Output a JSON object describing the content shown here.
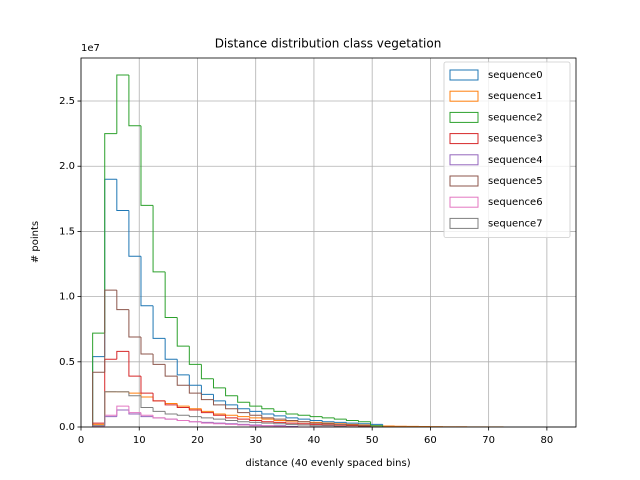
{
  "chart_data": {
    "type": "histogram",
    "title": "Distance distribution class vegetation",
    "xlabel": "distance (40 evenly spaced bins)",
    "ylabel": "# points",
    "y_offset_label": "1e7",
    "histtype": "step",
    "grid": true,
    "legend": "upper right",
    "xlim": [
      0,
      85
    ],
    "ylim": [
      0,
      28300000
    ],
    "xticks": [
      0,
      10,
      20,
      30,
      40,
      50,
      60,
      70,
      80
    ],
    "yticks": [
      {
        "value": 0,
        "label": "0.0"
      },
      {
        "value": 5000000,
        "label": "0.5"
      },
      {
        "value": 10000000,
        "label": "1.0"
      },
      {
        "value": 15000000,
        "label": "1.5"
      },
      {
        "value": 20000000,
        "label": "2.0"
      },
      {
        "value": 25000000,
        "label": "2.5"
      }
    ],
    "bins": [
      2.0,
      4.075,
      6.15,
      8.225,
      10.3,
      12.375,
      14.45,
      16.525,
      18.6,
      20.675,
      22.75,
      24.825,
      26.9,
      28.975,
      31.05,
      33.125,
      35.2,
      37.275,
      39.35,
      41.425,
      43.5,
      45.575,
      47.65,
      49.725,
      51.8,
      53.875,
      55.95,
      58.025,
      60.1,
      62.175,
      64.25,
      66.325,
      68.4,
      70.475,
      72.55,
      74.625,
      76.7,
      78.775,
      80.85,
      82.925,
      85.0
    ],
    "series": [
      {
        "name": "sequence0",
        "color": "#1f77b4",
        "values": [
          5400000,
          19000000,
          16600000,
          13100000,
          9300000,
          6800000,
          5200000,
          4000000,
          3200000,
          2500000,
          2000000,
          1700000,
          1400000,
          1200000,
          1000000,
          850000,
          700000,
          600000,
          500000,
          400000,
          350000,
          300000,
          250000,
          200000,
          0,
          0,
          0,
          0,
          0,
          0,
          0,
          0,
          0,
          0,
          0,
          0,
          0,
          0,
          0,
          0
        ]
      },
      {
        "name": "sequence1",
        "color": "#ff7f0e",
        "values": [
          200000,
          2700000,
          2700000,
          2600000,
          2300000,
          2000000,
          1800000,
          1600000,
          1400000,
          1200000,
          1000000,
          900000,
          800000,
          700000,
          600000,
          500000,
          450000,
          400000,
          350000,
          300000,
          250000,
          200000,
          150000,
          100000,
          80000,
          60000,
          50000,
          40000,
          30000,
          20000,
          20000,
          10000,
          10000,
          10000,
          0,
          0,
          0,
          0,
          0,
          0
        ]
      },
      {
        "name": "sequence2",
        "color": "#2ca02c",
        "values": [
          7200000,
          22500000,
          27000000,
          23100000,
          17000000,
          11900000,
          8400000,
          6200000,
          4800000,
          3700000,
          3000000,
          2400000,
          1900000,
          1600000,
          1400000,
          1200000,
          1000000,
          900000,
          800000,
          700000,
          600000,
          500000,
          400000,
          100000,
          0,
          0,
          0,
          0,
          0,
          0,
          0,
          0,
          0,
          0,
          0,
          0,
          0,
          0,
          0,
          0
        ]
      },
      {
        "name": "sequence3",
        "color": "#d62728",
        "values": [
          300000,
          5200000,
          5800000,
          3900000,
          2600000,
          2000000,
          1700000,
          1500000,
          1300000,
          1100000,
          900000,
          700000,
          600000,
          500000,
          400000,
          350000,
          300000,
          250000,
          200000,
          150000,
          100000,
          100000,
          50000,
          0,
          0,
          0,
          0,
          0,
          0,
          0,
          0,
          0,
          0,
          0,
          0,
          0,
          0,
          0,
          0,
          0
        ]
      },
      {
        "name": "sequence4",
        "color": "#9467bd",
        "values": [
          100000,
          800000,
          1300000,
          1000000,
          800000,
          700000,
          600000,
          500000,
          400000,
          350000,
          300000,
          250000,
          200000,
          150000,
          100000,
          100000,
          50000,
          0,
          0,
          0,
          0,
          0,
          0,
          0,
          0,
          0,
          0,
          0,
          0,
          0,
          0,
          0,
          0,
          0,
          0,
          0,
          0,
          0,
          0,
          0
        ]
      },
      {
        "name": "sequence5",
        "color": "#8c564b",
        "values": [
          4200000,
          10500000,
          9000000,
          6900000,
          5600000,
          4800000,
          3900000,
          3200000,
          2600000,
          2100000,
          1700000,
          1400000,
          1100000,
          900000,
          700000,
          600000,
          500000,
          400000,
          300000,
          250000,
          200000,
          150000,
          100000,
          0,
          0,
          0,
          0,
          0,
          0,
          0,
          0,
          0,
          0,
          0,
          0,
          0,
          0,
          0,
          0,
          0
        ]
      },
      {
        "name": "sequence6",
        "color": "#e377c2",
        "values": [
          50000,
          900000,
          1600000,
          1100000,
          900000,
          700000,
          600000,
          500000,
          400000,
          300000,
          250000,
          200000,
          150000,
          100000,
          100000,
          50000,
          0,
          0,
          0,
          0,
          0,
          0,
          0,
          0,
          0,
          0,
          0,
          0,
          0,
          0,
          0,
          0,
          0,
          0,
          0,
          0,
          0,
          0,
          0,
          0
        ]
      },
      {
        "name": "sequence7",
        "color": "#7f7f7f",
        "values": [
          100000,
          2700000,
          2700000,
          2400000,
          1500000,
          1200000,
          1000000,
          900000,
          800000,
          700000,
          600000,
          500000,
          400000,
          350000,
          300000,
          250000,
          200000,
          150000,
          100000,
          100000,
          50000,
          0,
          0,
          0,
          0,
          0,
          0,
          0,
          0,
          0,
          0,
          0,
          0,
          0,
          0,
          0,
          0,
          0,
          0,
          0
        ]
      }
    ]
  }
}
